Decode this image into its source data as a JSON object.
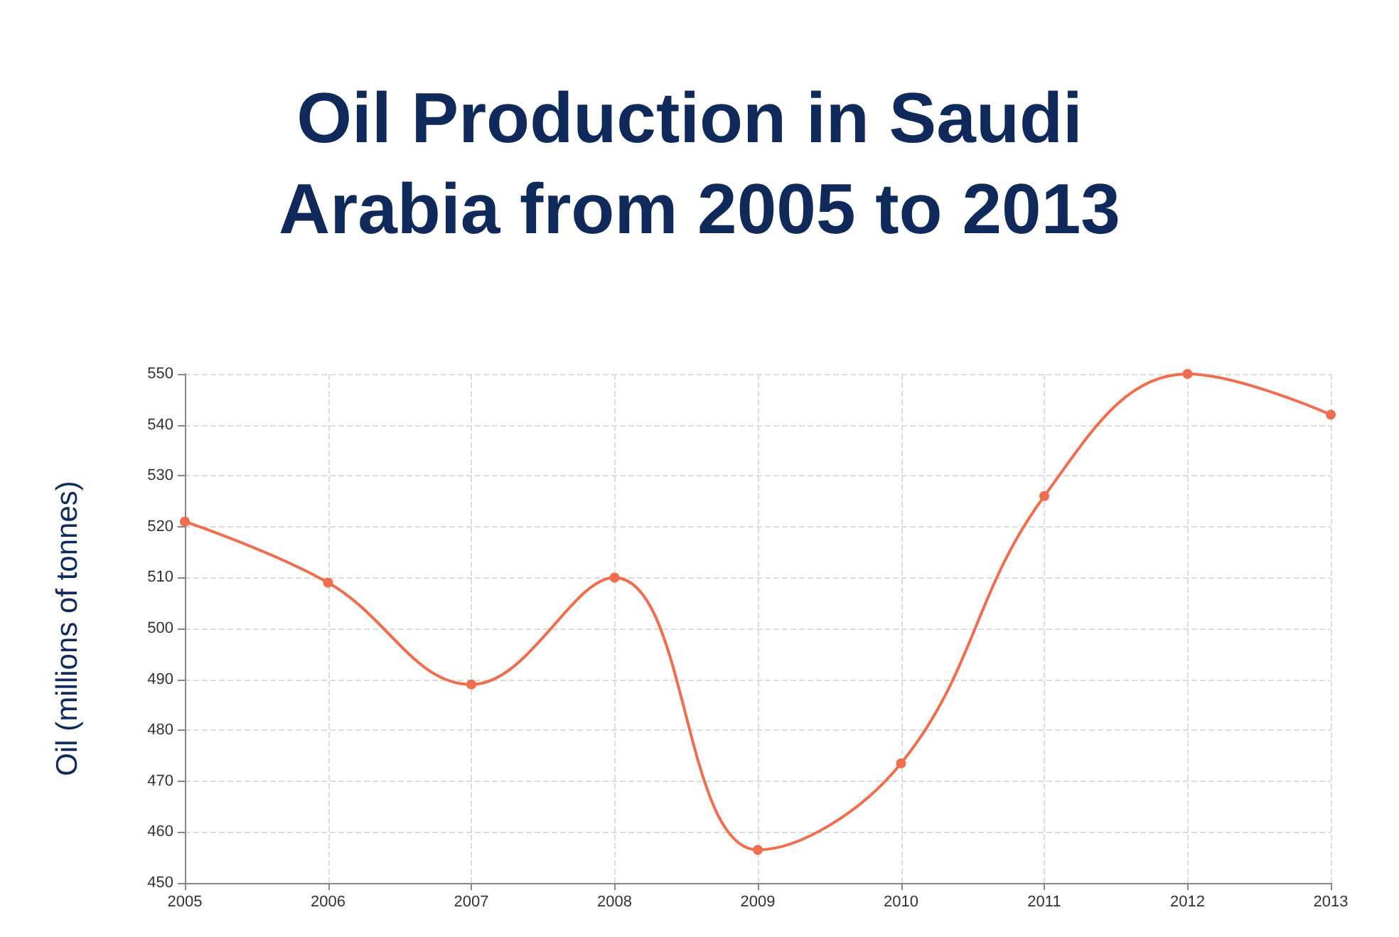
{
  "chart_data": {
    "type": "line",
    "title": "Oil Production in Saudi Arabia from 2005 to 2013",
    "ylabel": "Oil (millions of tonnes)",
    "categories": [
      "2005",
      "2006",
      "2007",
      "2008",
      "2009",
      "2010",
      "2011",
      "2012",
      "2013"
    ],
    "series": [
      {
        "color": "#ee6e4f",
        "values": [
          521,
          509,
          489,
          510,
          456.5,
          473.5,
          526,
          550,
          542
        ]
      }
    ],
    "ylim": [
      450,
      550
    ],
    "yticks": [
      450,
      460,
      470,
      480,
      490,
      500,
      510,
      520,
      530,
      540,
      550
    ],
    "grid": true,
    "marker": "circle"
  }
}
